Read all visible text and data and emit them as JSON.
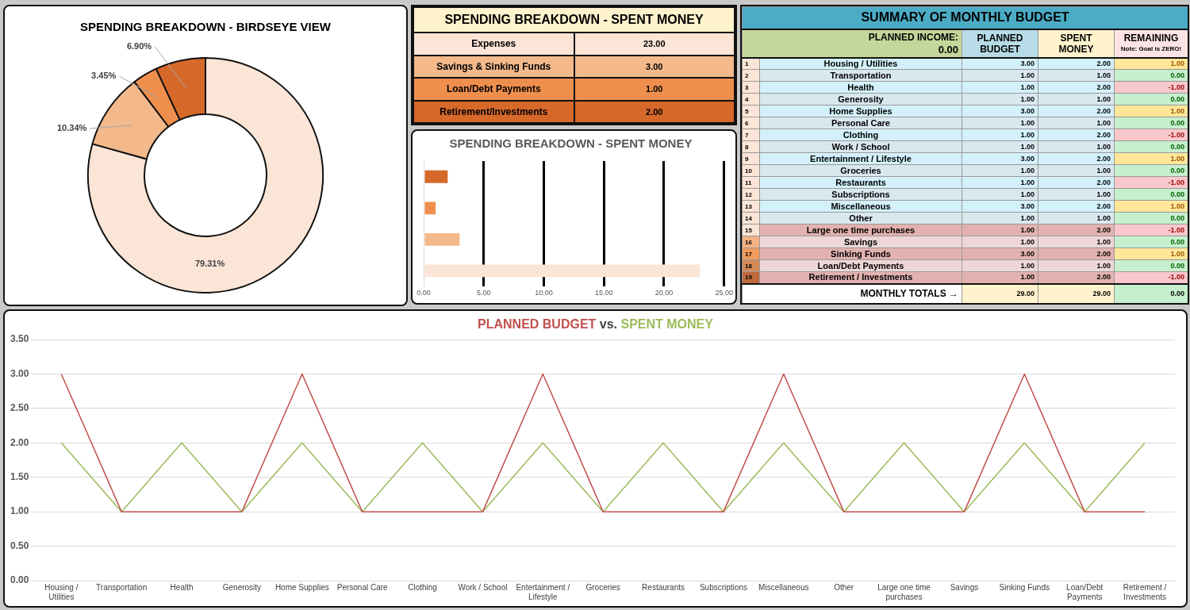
{
  "chart_data": [
    {
      "type": "donut",
      "title": "SPENDING BREAKDOWN - BIRDSEYE VIEW",
      "categories": [
        null,
        null,
        null,
        null
      ],
      "values": [
        79.31,
        10.34,
        3.45,
        6.9
      ],
      "colors": [
        "#fae5d6",
        "#f3b98b",
        "#ef8f4d",
        "#d6682a"
      ],
      "value_labels": [
        "79.31%",
        "10.34%",
        "3.45%",
        "6.90%"
      ],
      "legend": false
    },
    {
      "type": "other",
      "title": "SPENDING BREAKDOWN - SPENT MONEY",
      "categories": [
        "Expenses",
        "Savings & Sinking Funds",
        "Loan/Debt Payments",
        "Retirement/Investments"
      ],
      "value_labels": [
        "23.00",
        "3.00",
        "1.00",
        "2.00"
      ],
      "colors": [
        "#fae5d6",
        "#f3b98b",
        "#ef8f4d",
        "#d6682a"
      ],
      "data_labels": true
    },
    {
      "type": "bar",
      "orientation": "horizontal",
      "title": "SPENDING BREAKDOWN - SPENT MONEY",
      "categories": [
        null,
        null,
        null,
        null
      ],
      "values": [
        2,
        1,
        3,
        23
      ],
      "colors": [
        "#d6682a",
        "#ef8f4d",
        "#f3b98b",
        "#fae5d6"
      ],
      "xlim": [
        0,
        25
      ],
      "xticks": [
        {
          "value": 0,
          "label": "0.00"
        },
        {
          "value": 5,
          "label": "5.00"
        },
        {
          "value": 10,
          "label": "10.00"
        },
        {
          "value": 15,
          "label": "15.00"
        },
        {
          "value": 20,
          "label": "20.00"
        },
        {
          "value": 25,
          "label": "25.00"
        }
      ],
      "grid": "x",
      "tick_labels": "x",
      "legend": false
    },
    {
      "type": "heatmap",
      "title": "SUMMARY OF MONTHLY BUDGET",
      "categories": [
        "PLANNED BUDGET",
        "SPENT MONEY",
        "REMAINING"
      ],
      "y2_categories": [
        "1",
        "2",
        "3",
        "4",
        "5",
        "6",
        "7",
        "8",
        "9",
        "10",
        "11",
        "12",
        "13",
        "14",
        "15",
        "16",
        "17",
        "18",
        "19"
      ],
      "y_categories": [
        "Housing / Utilities",
        "Transportation",
        "Health",
        "Generosity",
        "Home Supplies",
        "Personal Care",
        "Clothing",
        "Work / School",
        "Entertainment / Lifestyle",
        "Groceries",
        "Restaurants",
        "Subscriptions",
        "Miscellaneous",
        "Other",
        "Large one time purchases",
        "Savings",
        "Sinking Funds",
        "Loan/Debt Payments",
        "Retirement / Investments"
      ],
      "colors": [
        "#d3f1fb",
        "#d9e8ef",
        "#d3f1fb",
        "#d9e8ef",
        "#d3f1fb",
        "#d9e8ef",
        "#d3f1fb",
        "#d9e8ef",
        "#d3f1fb",
        "#d9e8ef",
        "#d3f1fb",
        "#d9e8ef",
        "#d3f1fb",
        "#d9e8ef",
        "#e3b2b0",
        "#eed7d6",
        "#e3b2b0",
        "#eed7d6",
        "#e3b2b0"
      ],
      "cells": [
        [
          3,
          2,
          1
        ],
        [
          1,
          1,
          0
        ],
        [
          1,
          2,
          -1
        ],
        [
          1,
          1,
          0
        ],
        [
          3,
          2,
          1
        ],
        [
          1,
          1,
          0
        ],
        [
          1,
          2,
          -1
        ],
        [
          1,
          1,
          0
        ],
        [
          3,
          2,
          1
        ],
        [
          1,
          1,
          0
        ],
        [
          1,
          2,
          -1
        ],
        [
          1,
          1,
          0
        ],
        [
          3,
          2,
          1
        ],
        [
          1,
          1,
          0
        ],
        [
          1,
          2,
          -1
        ],
        [
          1,
          1,
          0
        ],
        [
          3,
          2,
          1
        ],
        [
          1,
          1,
          0
        ],
        [
          1,
          2,
          -1
        ]
      ],
      "cell_labels": [
        [
          "3.00",
          "2.00",
          "1.00"
        ],
        [
          "1.00",
          "1.00",
          "0.00"
        ],
        [
          "1.00",
          "2.00",
          "-1.00"
        ],
        [
          "1.00",
          "1.00",
          "0.00"
        ],
        [
          "3.00",
          "2.00",
          "1.00"
        ],
        [
          "1.00",
          "1.00",
          "0.00"
        ],
        [
          "1.00",
          "2.00",
          "-1.00"
        ],
        [
          "1.00",
          "1.00",
          "0.00"
        ],
        [
          "3.00",
          "2.00",
          "1.00"
        ],
        [
          "1.00",
          "1.00",
          "0.00"
        ],
        [
          "1.00",
          "2.00",
          "-1.00"
        ],
        [
          "1.00",
          "1.00",
          "0.00"
        ],
        [
          "3.00",
          "2.00",
          "1.00"
        ],
        [
          "1.00",
          "1.00",
          "0.00"
        ],
        [
          "1.00",
          "2.00",
          "-1.00"
        ],
        [
          "1.00",
          "1.00",
          "0.00"
        ],
        [
          "3.00",
          "2.00",
          "1.00"
        ],
        [
          "1.00",
          "1.00",
          "0.00"
        ],
        [
          "1.00",
          "2.00",
          "-1.00"
        ]
      ],
      "annotations": [
        "PLANNED INCOME:",
        "0.00",
        "Note: Goal is ZERO!",
        "MONTHLY TOTALS →"
      ],
      "totals": [
        "29.00",
        "29.00",
        "0.00"
      ]
    },
    {
      "type": "line",
      "title": "vs.",
      "categories": [
        "Housing / Utilities",
        "Transportation",
        "Health",
        "Generosity",
        "Home Supplies",
        "Personal Care",
        "Clothing",
        "Work / School",
        "Entertainment / Lifestyle",
        "Groceries",
        "Restaurants",
        "Subscriptions",
        "Miscellaneous",
        "Other",
        "Large one time purchases",
        "Savings",
        "Sinking Funds",
        "Loan/Debt Payments",
        "Retirement / Investments"
      ],
      "series": [
        {
          "name": "PLANNED BUDGET",
          "color": "#c0504d",
          "values": [
            3,
            1,
            1,
            1,
            3,
            1,
            1,
            1,
            3,
            1,
            1,
            1,
            3,
            1,
            1,
            1,
            3,
            1,
            1
          ]
        },
        {
          "name": "SPENT MONEY",
          "color": "#9bbb59",
          "values": [
            2,
            1,
            2,
            1,
            2,
            1,
            2,
            1,
            2,
            1,
            2,
            1,
            2,
            1,
            2,
            1,
            2,
            1,
            2
          ]
        }
      ],
      "ylim": [
        0,
        3.5
      ],
      "yticks": [
        {
          "value": 0,
          "label": "0.00"
        },
        {
          "value": 0.5,
          "label": "0.50"
        },
        {
          "value": 1,
          "label": "1.00"
        },
        {
          "value": 1.5,
          "label": "1.50"
        },
        {
          "value": 2,
          "label": "2.00"
        },
        {
          "value": 2.5,
          "label": "2.50"
        },
        {
          "value": 3,
          "label": "3.00"
        },
        {
          "value": 3.5,
          "label": "3.50"
        }
      ],
      "grid": "y",
      "legend": false,
      "marker": "none",
      "line_style": "solid"
    }
  ]
}
